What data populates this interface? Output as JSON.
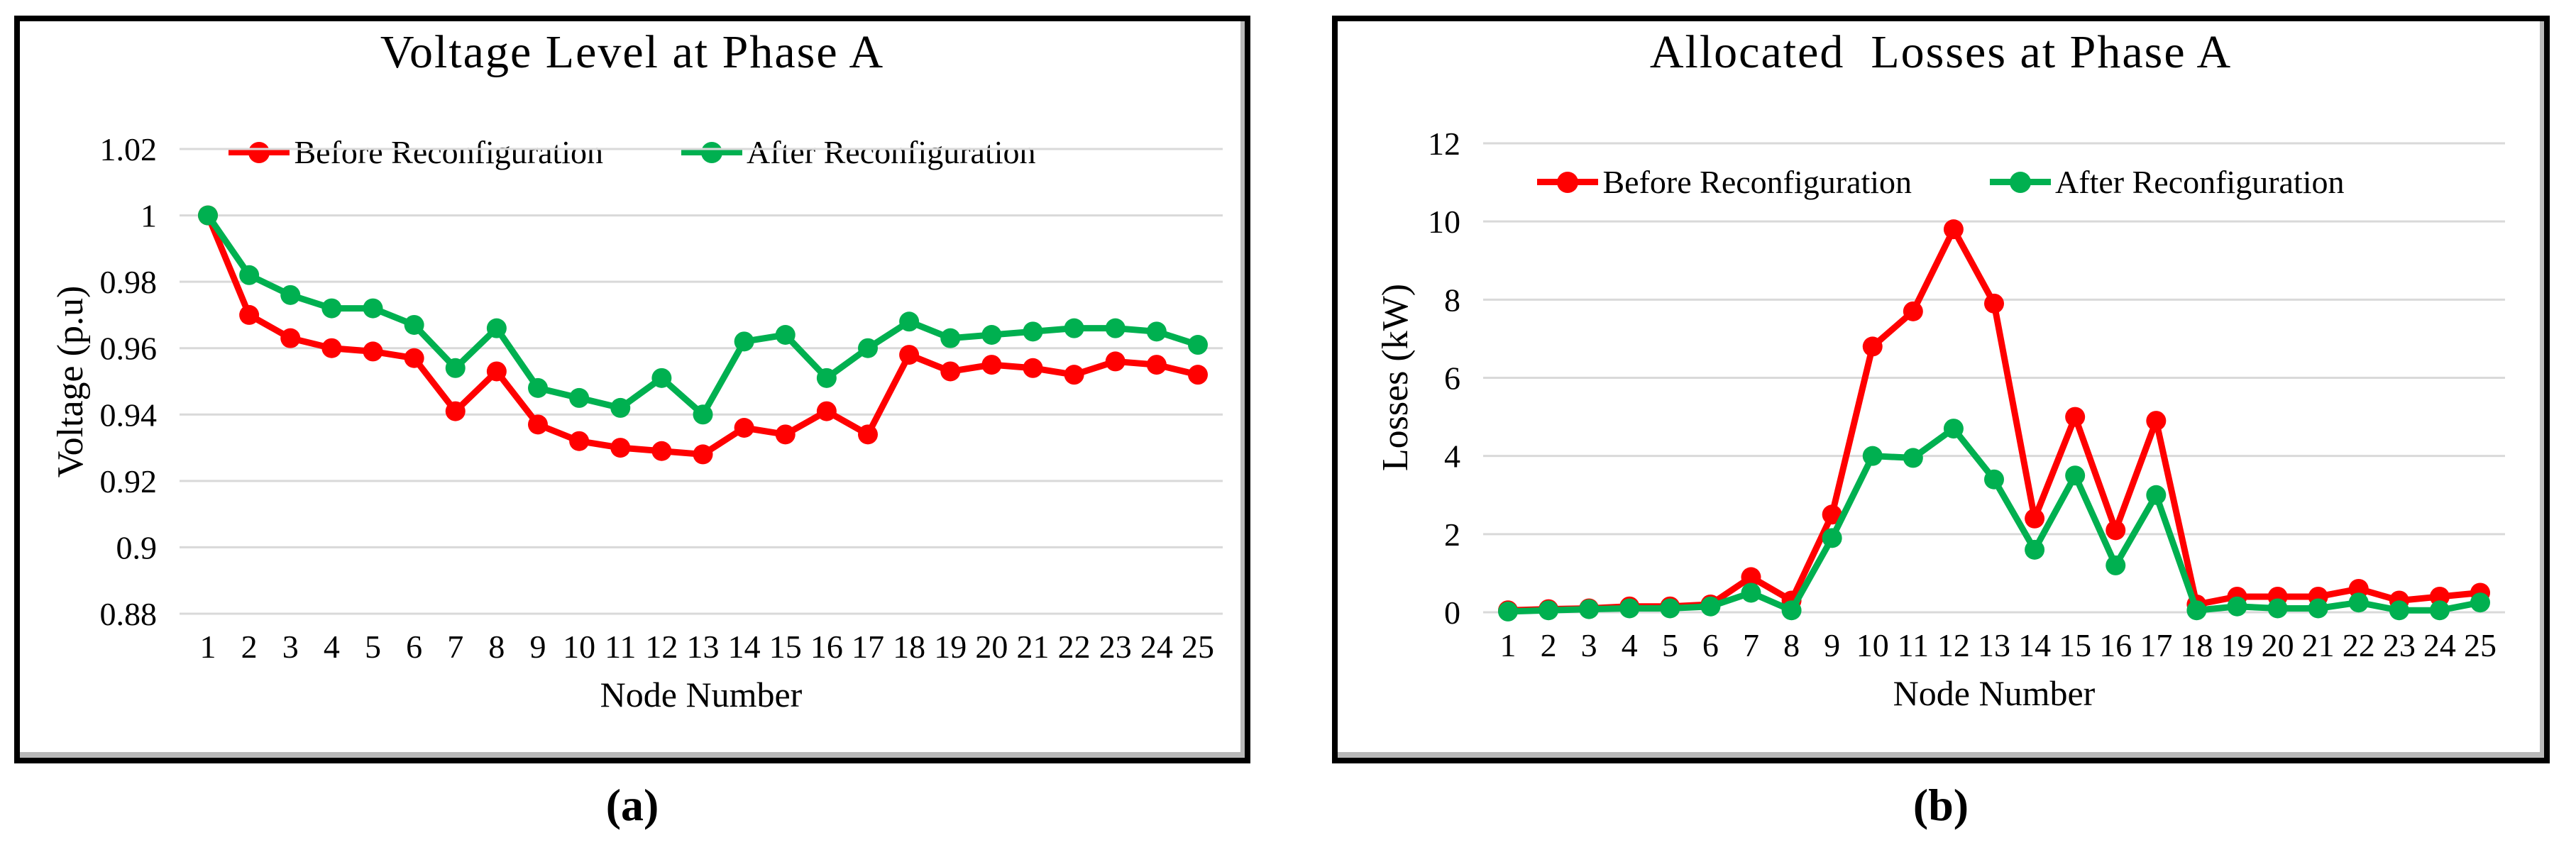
{
  "colors": {
    "before": "#FF0000",
    "after": "#00B050",
    "gridline": "#D9D9D9",
    "text": "#000000"
  },
  "panels": [
    {
      "caption": "(a)"
    },
    {
      "caption": "(b)"
    }
  ],
  "chart_data": [
    {
      "type": "line",
      "title": "Voltage Level at Phase A",
      "xlabel": "Node Number",
      "ylabel": "Voltage (p.u)",
      "legend_position": "top-center",
      "grid": true,
      "ylim": [
        0.88,
        1.02
      ],
      "yticks": [
        1.02,
        1.0,
        0.98,
        0.96,
        0.94,
        0.92,
        0.9,
        0.88
      ],
      "ytick_labels": [
        "1.02",
        "1",
        "0.98",
        "0.96",
        "0.94",
        "0.92",
        "0.9",
        "0.88"
      ],
      "categories": [
        "1",
        "2",
        "3",
        "4",
        "5",
        "6",
        "7",
        "8",
        "9",
        "10",
        "11",
        "12",
        "13",
        "14",
        "15",
        "16",
        "17",
        "18",
        "19",
        "20",
        "21",
        "22",
        "23",
        "24",
        "25"
      ],
      "series": [
        {
          "name": "Before Reconfiguration",
          "color": "#FF0000",
          "values": [
            1.0,
            0.97,
            0.963,
            0.96,
            0.959,
            0.957,
            0.941,
            0.953,
            0.937,
            0.932,
            0.93,
            0.929,
            0.928,
            0.936,
            0.934,
            0.941,
            0.934,
            0.958,
            0.953,
            0.955,
            0.954,
            0.952,
            0.956,
            0.955,
            0.952
          ]
        },
        {
          "name": "After Reconfiguration",
          "color": "#00B050",
          "values": [
            1.0,
            0.982,
            0.976,
            0.972,
            0.972,
            0.967,
            0.954,
            0.966,
            0.948,
            0.945,
            0.942,
            0.951,
            0.94,
            0.962,
            0.964,
            0.951,
            0.96,
            0.968,
            0.963,
            0.964,
            0.965,
            0.966,
            0.966,
            0.965,
            0.961
          ]
        }
      ]
    },
    {
      "type": "line",
      "title": "Allocated  Losses at Phase A",
      "xlabel": "Node Number",
      "ylabel": "Losses (kW)",
      "legend_position": "top-center",
      "grid": true,
      "ylim": [
        0,
        12
      ],
      "yticks": [
        12,
        10,
        8,
        6,
        4,
        2,
        0
      ],
      "ytick_labels": [
        "12",
        "10",
        "8",
        "6",
        "4",
        "2",
        "0"
      ],
      "categories": [
        "1",
        "2",
        "3",
        "4",
        "5",
        "6",
        "7",
        "8",
        "9",
        "10",
        "11",
        "12",
        "13",
        "14",
        "15",
        "16",
        "17",
        "18",
        "19",
        "20",
        "21",
        "22",
        "23",
        "24",
        "25"
      ],
      "series": [
        {
          "name": "Before Reconfiguration",
          "color": "#FF0000",
          "values": [
            0.05,
            0.08,
            0.1,
            0.15,
            0.15,
            0.2,
            0.9,
            0.3,
            2.5,
            6.8,
            7.7,
            9.8,
            7.9,
            2.4,
            5.0,
            2.1,
            4.9,
            0.2,
            0.4,
            0.4,
            0.4,
            0.6,
            0.3,
            0.4,
            0.5
          ]
        },
        {
          "name": "After Reconfiguration",
          "color": "#00B050",
          "values": [
            0.02,
            0.05,
            0.08,
            0.1,
            0.1,
            0.15,
            0.5,
            0.05,
            1.9,
            4.0,
            3.95,
            4.7,
            3.4,
            1.6,
            3.5,
            1.2,
            3.0,
            0.05,
            0.15,
            0.1,
            0.1,
            0.25,
            0.05,
            0.05,
            0.25
          ]
        }
      ]
    }
  ]
}
